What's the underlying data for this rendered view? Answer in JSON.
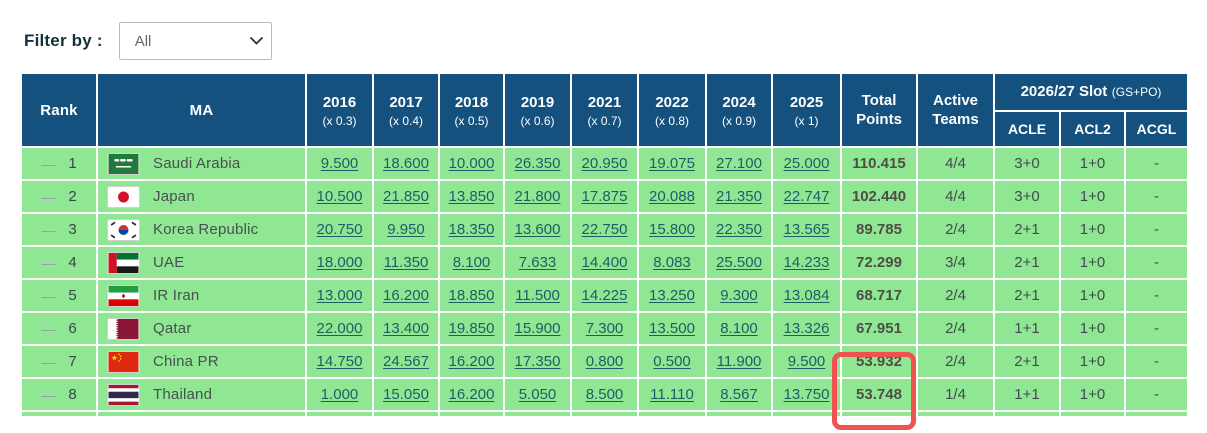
{
  "filter": {
    "label": "Filter by :",
    "selected": "All",
    "options": [
      "All"
    ]
  },
  "colors": {
    "header_bg": "#15517f",
    "row_green": "#90e793",
    "highlight_red": "#ee5350",
    "link_teal": "#1a5f66"
  },
  "table": {
    "columns": {
      "rank": "Rank",
      "ma": "MA",
      "years": [
        {
          "year": "2016",
          "mult": "(x 0.3)"
        },
        {
          "year": "2017",
          "mult": "(x 0.4)"
        },
        {
          "year": "2018",
          "mult": "(x 0.5)"
        },
        {
          "year": "2019",
          "mult": "(x 0.6)"
        },
        {
          "year": "2021",
          "mult": "(x 0.7)"
        },
        {
          "year": "2022",
          "mult": "(x 0.8)"
        },
        {
          "year": "2024",
          "mult": "(x 0.9)"
        },
        {
          "year": "2025",
          "mult": "(x 1)"
        }
      ],
      "total": "Total Points",
      "active": "Active Teams",
      "slot_group": "2026/27 Slot",
      "slot_group_suffix": "(GS+PO)",
      "slots": [
        "ACLE",
        "ACL2",
        "ACGL"
      ]
    },
    "rows": [
      {
        "trend": "—",
        "rank": "1",
        "country": "Saudi Arabia",
        "flag": "saudi-arabia",
        "values": [
          "9.500",
          "18.600",
          "10.000",
          "26.350",
          "20.950",
          "19.075",
          "27.100",
          "25.000"
        ],
        "total": "110.415",
        "active": "4/4",
        "acle": "3+0",
        "acl2": "1+0",
        "acgl": "-",
        "highlight_total": false
      },
      {
        "trend": "—",
        "rank": "2",
        "country": "Japan",
        "flag": "japan",
        "values": [
          "10.500",
          "21.850",
          "13.850",
          "21.800",
          "17.875",
          "20.088",
          "21.350",
          "22.747"
        ],
        "total": "102.440",
        "active": "4/4",
        "acle": "3+0",
        "acl2": "1+0",
        "acgl": "-",
        "highlight_total": false
      },
      {
        "trend": "—",
        "rank": "3",
        "country": "Korea Republic",
        "flag": "korea-republic",
        "values": [
          "20.750",
          "9.950",
          "18.350",
          "13.600",
          "22.750",
          "15.800",
          "22.350",
          "13.565"
        ],
        "total": "89.785",
        "active": "2/4",
        "acle": "2+1",
        "acl2": "1+0",
        "acgl": "-",
        "highlight_total": false
      },
      {
        "trend": "—",
        "rank": "4",
        "country": "UAE",
        "flag": "uae",
        "values": [
          "18.000",
          "11.350",
          "8.100",
          "7.633",
          "14.400",
          "8.083",
          "25.500",
          "14.233"
        ],
        "total": "72.299",
        "active": "3/4",
        "acle": "2+1",
        "acl2": "1+0",
        "acgl": "-",
        "highlight_total": false
      },
      {
        "trend": "—",
        "rank": "5",
        "country": "IR Iran",
        "flag": "ir-iran",
        "values": [
          "13.000",
          "16.200",
          "18.850",
          "11.500",
          "14.225",
          "13.250",
          "9.300",
          "13.084"
        ],
        "total": "68.717",
        "active": "2/4",
        "acle": "2+1",
        "acl2": "1+0",
        "acgl": "-",
        "highlight_total": false
      },
      {
        "trend": "—",
        "rank": "6",
        "country": "Qatar",
        "flag": "qatar",
        "values": [
          "22.000",
          "13.400",
          "19.850",
          "15.900",
          "7.300",
          "13.500",
          "8.100",
          "13.326"
        ],
        "total": "67.951",
        "active": "2/4",
        "acle": "1+1",
        "acl2": "1+0",
        "acgl": "-",
        "highlight_total": false
      },
      {
        "trend": "—",
        "rank": "7",
        "country": "China PR",
        "flag": "china-pr",
        "values": [
          "14.750",
          "24.567",
          "16.200",
          "17.350",
          "0.800",
          "0.500",
          "11.900",
          "9.500"
        ],
        "total": "53.932",
        "active": "2/4",
        "acle": "2+1",
        "acl2": "1+0",
        "acgl": "-",
        "highlight_total": true
      },
      {
        "trend": "—",
        "rank": "8",
        "country": "Thailand",
        "flag": "thailand",
        "values": [
          "1.000",
          "15.050",
          "16.200",
          "5.050",
          "8.500",
          "11.110",
          "8.567",
          "13.750"
        ],
        "total": "53.748",
        "active": "1/4",
        "acle": "1+1",
        "acl2": "1+0",
        "acgl": "-",
        "highlight_total": true
      }
    ]
  }
}
